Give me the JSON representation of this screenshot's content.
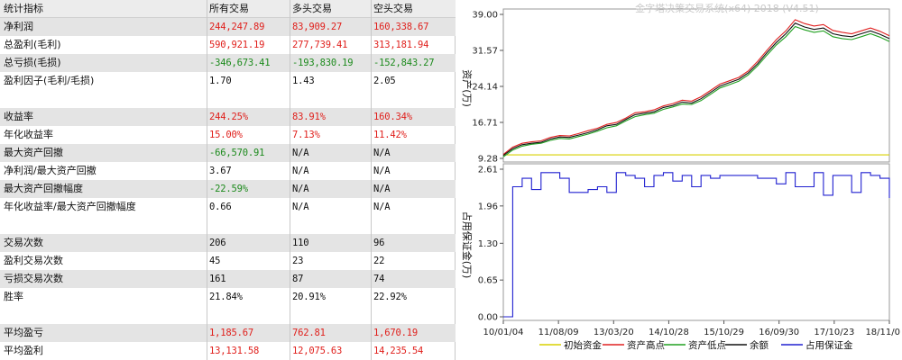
{
  "table": {
    "headers": [
      "统计指标",
      "所有交易",
      "多头交易",
      "空头交易"
    ],
    "rows": [
      {
        "label": "净利润",
        "values": [
          "244,247.89",
          "83,909.27",
          "160,338.67"
        ],
        "color": "red",
        "shade": true
      },
      {
        "label": "总盈利(毛利)",
        "values": [
          "590,921.19",
          "277,739.41",
          "313,181.94"
        ],
        "color": "red",
        "shade": false
      },
      {
        "label": "总亏损(毛损)",
        "values": [
          "-346,673.41",
          "-193,830.19",
          "-152,843.27"
        ],
        "color": "green",
        "shade": true
      },
      {
        "label": "盈利因子(毛利/毛损)",
        "values": [
          "1.70",
          "1.43",
          "2.05"
        ],
        "color": "black",
        "shade": false
      },
      {
        "label": "",
        "values": [
          "",
          "",
          ""
        ],
        "color": "black",
        "shade": false
      },
      {
        "label": "收益率",
        "values": [
          "244.25%",
          "83.91%",
          "160.34%"
        ],
        "color": "red",
        "shade": true
      },
      {
        "label": "年化收益率",
        "values": [
          "15.00%",
          "7.13%",
          "11.42%"
        ],
        "color": "red",
        "shade": false
      },
      {
        "label": "最大资产回撤",
        "values": [
          "-66,570.91",
          "N/A",
          "N/A"
        ],
        "color": "green",
        "shade": true
      },
      {
        "label": "净利润/最大资产回撤",
        "values": [
          "3.67",
          "N/A",
          "N/A"
        ],
        "color": "black",
        "shade": false
      },
      {
        "label": "最大资产回撤幅度",
        "values": [
          "-22.59%",
          "N/A",
          "N/A"
        ],
        "color": "green",
        "shade": true
      },
      {
        "label": "年化收益率/最大资产回撤幅度",
        "values": [
          "0.66",
          "N/A",
          "N/A"
        ],
        "color": "black",
        "shade": false
      },
      {
        "label": "",
        "values": [
          "",
          "",
          ""
        ],
        "color": "black",
        "shade": false
      },
      {
        "label": "交易次数",
        "values": [
          "206",
          "110",
          "96"
        ],
        "color": "black",
        "shade": true
      },
      {
        "label": "盈利交易次数",
        "values": [
          "45",
          "23",
          "22"
        ],
        "color": "black",
        "shade": false
      },
      {
        "label": "亏损交易次数",
        "values": [
          "161",
          "87",
          "74"
        ],
        "color": "black",
        "shade": true
      },
      {
        "label": "胜率",
        "values": [
          "21.84%",
          "20.91%",
          "22.92%"
        ],
        "color": "black",
        "shade": false
      },
      {
        "label": "",
        "values": [
          "",
          "",
          ""
        ],
        "color": "black",
        "shade": false
      },
      {
        "label": "平均盈亏",
        "values": [
          "1,185.67",
          "762.81",
          "1,670.19"
        ],
        "color": "red",
        "shade": true
      },
      {
        "label": "平均盈利",
        "values": [
          "13,131.58",
          "12,075.63",
          "14,235.54"
        ],
        "color": "red",
        "shade": false
      }
    ]
  },
  "chart_data": {
    "type": "line",
    "title": "金字塔决策交易系统(x64) 2018 (V4.51)",
    "x_ticks": [
      "10/01/04",
      "11/08/09",
      "13/03/20",
      "14/10/28",
      "15/10/29",
      "16/09/30",
      "17/10/23",
      "18/11/0"
    ],
    "upper": {
      "ylabel": "资产(万)",
      "y_ticks": [
        "39.00",
        "31.57",
        "24.14",
        "16.71",
        "9.28"
      ],
      "ylim": [
        9.28,
        39.0
      ],
      "series": [
        {
          "name": "初始资金",
          "color": "#d8d000",
          "values": [
            10.0,
            10.0,
            10.0,
            10.0,
            10.0,
            10.0,
            10.0,
            10.0,
            10.0,
            10.0,
            10.0,
            10.0,
            10.0,
            10.0,
            10.0,
            10.0,
            10.0,
            10.0,
            10.0,
            10.0,
            10.0,
            10.0,
            10.0,
            10.0,
            10.0,
            10.0,
            10.0,
            10.0,
            10.0,
            10.0,
            10.0,
            10.0,
            10.0,
            10.0,
            10.0,
            10.0,
            10.0,
            10.0,
            10.0,
            10.0,
            10.0,
            10.0
          ]
        },
        {
          "name": "资产高点",
          "color": "#e02020",
          "values": [
            10.1,
            11.6,
            12.4,
            12.7,
            12.9,
            13.6,
            14.0,
            13.9,
            14.4,
            15.0,
            15.5,
            16.3,
            16.7,
            17.6,
            18.7,
            18.9,
            19.3,
            20.1,
            20.6,
            21.3,
            21.1,
            22.0,
            23.3,
            24.6,
            25.3,
            26.0,
            27.3,
            29.3,
            31.6,
            33.8,
            35.6,
            37.9,
            37.1,
            36.6,
            36.9,
            35.7,
            35.3,
            35.0,
            35.6,
            36.2,
            35.5,
            34.6
          ]
        },
        {
          "name": "资产低点",
          "color": "#20a020",
          "values": [
            9.6,
            11.0,
            11.8,
            12.2,
            12.4,
            13.0,
            13.4,
            13.3,
            13.8,
            14.3,
            14.9,
            15.6,
            16.0,
            17.0,
            17.9,
            18.3,
            18.6,
            19.4,
            19.9,
            20.5,
            20.4,
            21.2,
            22.5,
            23.8,
            24.5,
            25.2,
            26.5,
            28.4,
            30.6,
            32.7,
            34.4,
            36.5,
            35.8,
            35.3,
            35.6,
            34.4,
            34.0,
            33.8,
            34.4,
            35.0,
            34.3,
            33.4
          ]
        },
        {
          "name": "余额",
          "color": "#111111",
          "values": [
            9.9,
            11.3,
            12.1,
            12.4,
            12.6,
            13.3,
            13.7,
            13.6,
            14.1,
            14.6,
            15.2,
            16.0,
            16.3,
            17.3,
            18.3,
            18.6,
            18.9,
            19.8,
            20.2,
            20.9,
            20.7,
            21.6,
            22.9,
            24.2,
            24.9,
            25.6,
            26.9,
            28.8,
            31.1,
            33.2,
            35.0,
            37.2,
            36.4,
            35.9,
            36.2,
            35.0,
            34.6,
            34.4,
            35.0,
            35.6,
            34.9,
            34.0
          ]
        }
      ]
    },
    "lower": {
      "ylabel": "占用保证金(万)",
      "y_ticks": [
        "2.61",
        "1.96",
        "1.30",
        "0.65",
        "0.00"
      ],
      "ylim": [
        0.0,
        2.61
      ],
      "series": [
        {
          "name": "占用保证金",
          "color": "#2020d0",
          "values": [
            0.0,
            2.3,
            2.45,
            2.25,
            2.55,
            2.55,
            2.45,
            2.2,
            2.2,
            2.25,
            2.3,
            2.2,
            2.55,
            2.5,
            2.45,
            2.3,
            2.5,
            2.55,
            2.4,
            2.5,
            2.3,
            2.5,
            2.45,
            2.5,
            2.5,
            2.5,
            2.5,
            2.45,
            2.45,
            2.35,
            2.55,
            2.3,
            2.3,
            2.55,
            2.15,
            2.5,
            2.5,
            2.2,
            2.55,
            2.5,
            2.45,
            2.1
          ]
        }
      ]
    },
    "legend": [
      "初始资金",
      "资产高点",
      "资产低点",
      "余额",
      "占用保证金"
    ],
    "legend_colors": [
      "#d8d000",
      "#e02020",
      "#20a020",
      "#111111",
      "#2020d0"
    ]
  }
}
